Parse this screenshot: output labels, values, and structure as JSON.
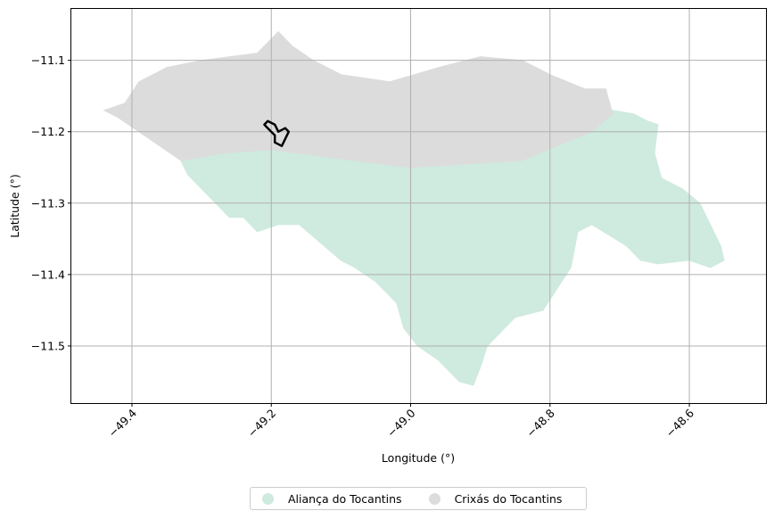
{
  "chart_data": {
    "type": "map",
    "xlabel": "Longitude (°)",
    "ylabel": "Latitude (°)",
    "xlim": [
      -49.487,
      -48.49
    ],
    "ylim": [
      -11.58,
      -11.028
    ],
    "xticks": [
      -49.4,
      -49.2,
      -49.0,
      -48.8,
      -48.6
    ],
    "xtick_labels": [
      "−49.4",
      "−49.2",
      "−49.0",
      "−48.8",
      "−48.6"
    ],
    "yticks": [
      -11.1,
      -11.2,
      -11.3,
      -11.4,
      -11.5
    ],
    "ytick_labels": [
      "−11.1",
      "−11.2",
      "−11.3",
      "−11.4",
      "−11.5"
    ],
    "grid": true,
    "legend_position": "bottom-center",
    "regions": [
      {
        "name": "Aliança do Tocantins",
        "color": "#cfeade",
        "outline": [
          [
            -49.33,
            -11.24
          ],
          [
            -49.27,
            -11.23
          ],
          [
            -49.2,
            -11.225
          ],
          [
            -49.1,
            -11.238
          ],
          [
            -49.0,
            -11.25
          ],
          [
            -48.92,
            -11.245
          ],
          [
            -48.84,
            -11.24
          ],
          [
            -48.74,
            -11.2
          ],
          [
            -48.71,
            -11.17
          ],
          [
            -48.68,
            -11.175
          ],
          [
            -48.66,
            -11.185
          ],
          [
            -48.645,
            -11.19
          ],
          [
            -48.65,
            -11.23
          ],
          [
            -48.64,
            -11.265
          ],
          [
            -48.61,
            -11.28
          ],
          [
            -48.585,
            -11.3
          ],
          [
            -48.57,
            -11.33
          ],
          [
            -48.555,
            -11.36
          ],
          [
            -48.55,
            -11.38
          ],
          [
            -48.57,
            -11.39
          ],
          [
            -48.6,
            -11.38
          ],
          [
            -48.645,
            -11.385
          ],
          [
            -48.67,
            -11.38
          ],
          [
            -48.69,
            -11.36
          ],
          [
            -48.74,
            -11.33
          ],
          [
            -48.76,
            -11.34
          ],
          [
            -48.77,
            -11.39
          ],
          [
            -48.79,
            -11.42
          ],
          [
            -48.81,
            -11.45
          ],
          [
            -48.85,
            -11.46
          ],
          [
            -48.87,
            -11.48
          ],
          [
            -48.89,
            -11.5
          ],
          [
            -48.9,
            -11.53
          ],
          [
            -48.91,
            -11.555
          ],
          [
            -48.93,
            -11.55
          ],
          [
            -48.96,
            -11.52
          ],
          [
            -48.99,
            -11.5
          ],
          [
            -49.01,
            -11.475
          ],
          [
            -49.02,
            -11.44
          ],
          [
            -49.05,
            -11.41
          ],
          [
            -49.08,
            -11.39
          ],
          [
            -49.1,
            -11.38
          ],
          [
            -49.13,
            -11.355
          ],
          [
            -49.16,
            -11.33
          ],
          [
            -49.19,
            -11.33
          ],
          [
            -49.22,
            -11.34
          ],
          [
            -49.24,
            -11.32
          ],
          [
            -49.26,
            -11.32
          ],
          [
            -49.28,
            -11.3
          ],
          [
            -49.3,
            -11.28
          ],
          [
            -49.32,
            -11.26
          ]
        ]
      },
      {
        "name": "Crixás do Tocantins",
        "color": "#dcdcdc",
        "outline": [
          [
            -49.44,
            -11.17
          ],
          [
            -49.41,
            -11.16
          ],
          [
            -49.39,
            -11.13
          ],
          [
            -49.35,
            -11.11
          ],
          [
            -49.3,
            -11.1
          ],
          [
            -49.22,
            -11.09
          ],
          [
            -49.19,
            -11.06
          ],
          [
            -49.17,
            -11.08
          ],
          [
            -49.14,
            -11.1
          ],
          [
            -49.1,
            -11.12
          ],
          [
            -49.03,
            -11.13
          ],
          [
            -48.96,
            -11.11
          ],
          [
            -48.9,
            -11.095
          ],
          [
            -48.84,
            -11.1
          ],
          [
            -48.8,
            -11.12
          ],
          [
            -48.75,
            -11.14
          ],
          [
            -48.72,
            -11.14
          ],
          [
            -48.71,
            -11.175
          ],
          [
            -48.74,
            -11.2
          ],
          [
            -48.84,
            -11.24
          ],
          [
            -48.92,
            -11.245
          ],
          [
            -49.0,
            -11.25
          ],
          [
            -49.1,
            -11.238
          ],
          [
            -49.2,
            -11.225
          ],
          [
            -49.27,
            -11.23
          ],
          [
            -49.33,
            -11.24
          ],
          [
            -49.36,
            -11.22
          ],
          [
            -49.39,
            -11.2
          ],
          [
            -49.42,
            -11.18
          ]
        ]
      }
    ],
    "highlight_outline": [
      [
        -49.205,
        -11.185
      ],
      [
        -49.195,
        -11.19
      ],
      [
        -49.19,
        -11.2
      ],
      [
        -49.18,
        -11.195
      ],
      [
        -49.175,
        -11.2
      ],
      [
        -49.18,
        -11.21
      ],
      [
        -49.185,
        -11.22
      ],
      [
        -49.195,
        -11.215
      ],
      [
        -49.195,
        -11.205
      ],
      [
        -49.2,
        -11.2
      ],
      [
        -49.21,
        -11.19
      ]
    ]
  },
  "legend": {
    "items": [
      {
        "label": "Aliança do Tocantins",
        "color": "#cfeade"
      },
      {
        "label": "Crixás do Tocantins",
        "color": "#dcdcdc"
      }
    ]
  }
}
